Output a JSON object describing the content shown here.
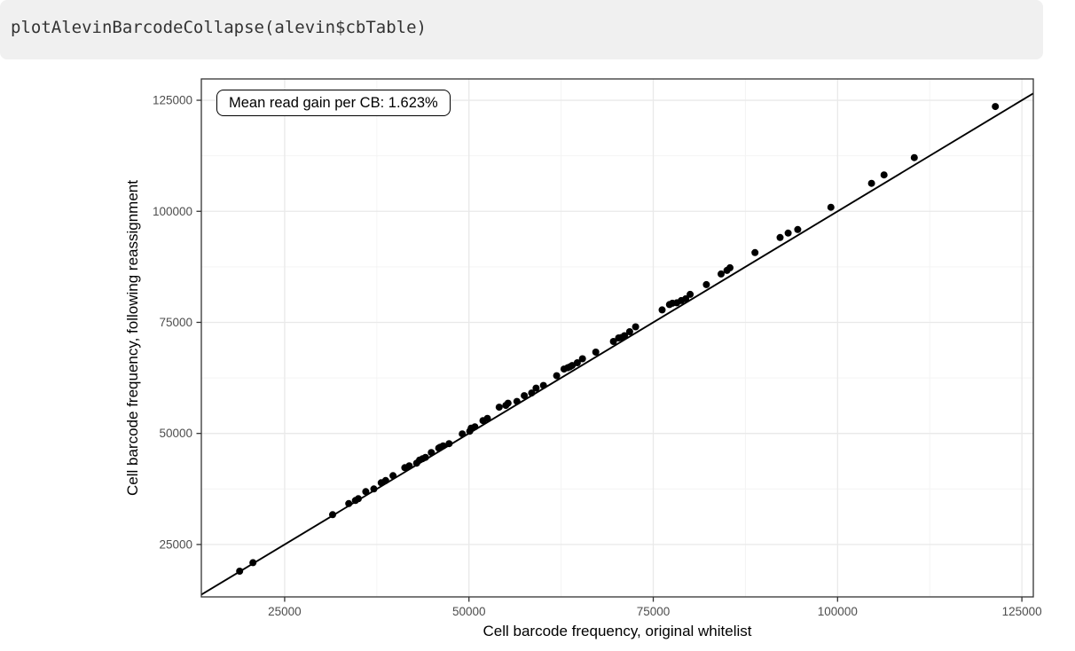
{
  "code_block": {
    "text": "plotAlevinBarcodeCollapse(alevin$cbTable)"
  },
  "colors": {
    "code_background": "#f0f0f0",
    "code_text": "#333333",
    "panel_background": "#ffffff",
    "panel_border": "#333333",
    "grid_major": "#e9e9e9",
    "grid_minor": "#f4f4f4",
    "tick_label": "#4d4d4d",
    "tick_mark": "#333333",
    "point": "#000000",
    "reference_line": "#000000"
  },
  "chart_data": {
    "type": "scatter",
    "title": "",
    "annotation": "Mean read gain per CB: 1.623%",
    "xlabel": "Cell barcode frequency, original whitelist",
    "ylabel": "Cell barcode frequency, following reassignment",
    "x_ticks": [
      25000,
      50000,
      75000,
      100000,
      125000
    ],
    "y_ticks": [
      25000,
      50000,
      75000,
      100000,
      125000
    ],
    "xlim": [
      13700,
      126550
    ],
    "ylim": [
      13200,
      129800
    ],
    "grid": true,
    "legend": "none",
    "reference_line": "y = x",
    "points": [
      [
        18900,
        19000
      ],
      [
        20700,
        20900
      ],
      [
        31500,
        31700
      ],
      [
        33700,
        34200
      ],
      [
        34600,
        34900
      ],
      [
        35000,
        35300
      ],
      [
        36000,
        36900
      ],
      [
        37100,
        37500
      ],
      [
        38100,
        38900
      ],
      [
        38700,
        39400
      ],
      [
        39700,
        40500
      ],
      [
        41300,
        42300
      ],
      [
        41900,
        42700
      ],
      [
        42900,
        43300
      ],
      [
        43300,
        44000
      ],
      [
        43700,
        44300
      ],
      [
        44100,
        44600
      ],
      [
        44900,
        45700
      ],
      [
        45900,
        46700
      ],
      [
        46100,
        46900
      ],
      [
        46500,
        47200
      ],
      [
        47300,
        47700
      ],
      [
        49100,
        49900
      ],
      [
        50100,
        50500
      ],
      [
        50300,
        51200
      ],
      [
        50800,
        51500
      ],
      [
        51900,
        52900
      ],
      [
        52500,
        53400
      ],
      [
        54100,
        55900
      ],
      [
        55000,
        56300
      ],
      [
        55300,
        56800
      ],
      [
        56500,
        57200
      ],
      [
        57500,
        58500
      ],
      [
        58500,
        59100
      ],
      [
        59100,
        60200
      ],
      [
        60100,
        60800
      ],
      [
        61900,
        63000
      ],
      [
        62900,
        64500
      ],
      [
        63400,
        64800
      ],
      [
        63700,
        65000
      ],
      [
        64000,
        65300
      ],
      [
        64700,
        65900
      ],
      [
        65400,
        66800
      ],
      [
        67200,
        68300
      ],
      [
        69600,
        70700
      ],
      [
        70300,
        71500
      ],
      [
        70700,
        71600
      ],
      [
        71100,
        72000
      ],
      [
        71800,
        72900
      ],
      [
        72600,
        74000
      ],
      [
        76200,
        77800
      ],
      [
        77200,
        79000
      ],
      [
        77600,
        79300
      ],
      [
        78200,
        79400
      ],
      [
        78800,
        79900
      ],
      [
        79400,
        80300
      ],
      [
        80000,
        81300
      ],
      [
        82200,
        83500
      ],
      [
        84200,
        85900
      ],
      [
        85000,
        86700
      ],
      [
        85400,
        87300
      ],
      [
        88800,
        90700
      ],
      [
        92200,
        94100
      ],
      [
        93300,
        95100
      ],
      [
        94600,
        95900
      ],
      [
        99100,
        100900
      ],
      [
        104600,
        106300
      ],
      [
        106300,
        108200
      ],
      [
        110400,
        112100
      ],
      [
        121400,
        123600
      ]
    ]
  }
}
